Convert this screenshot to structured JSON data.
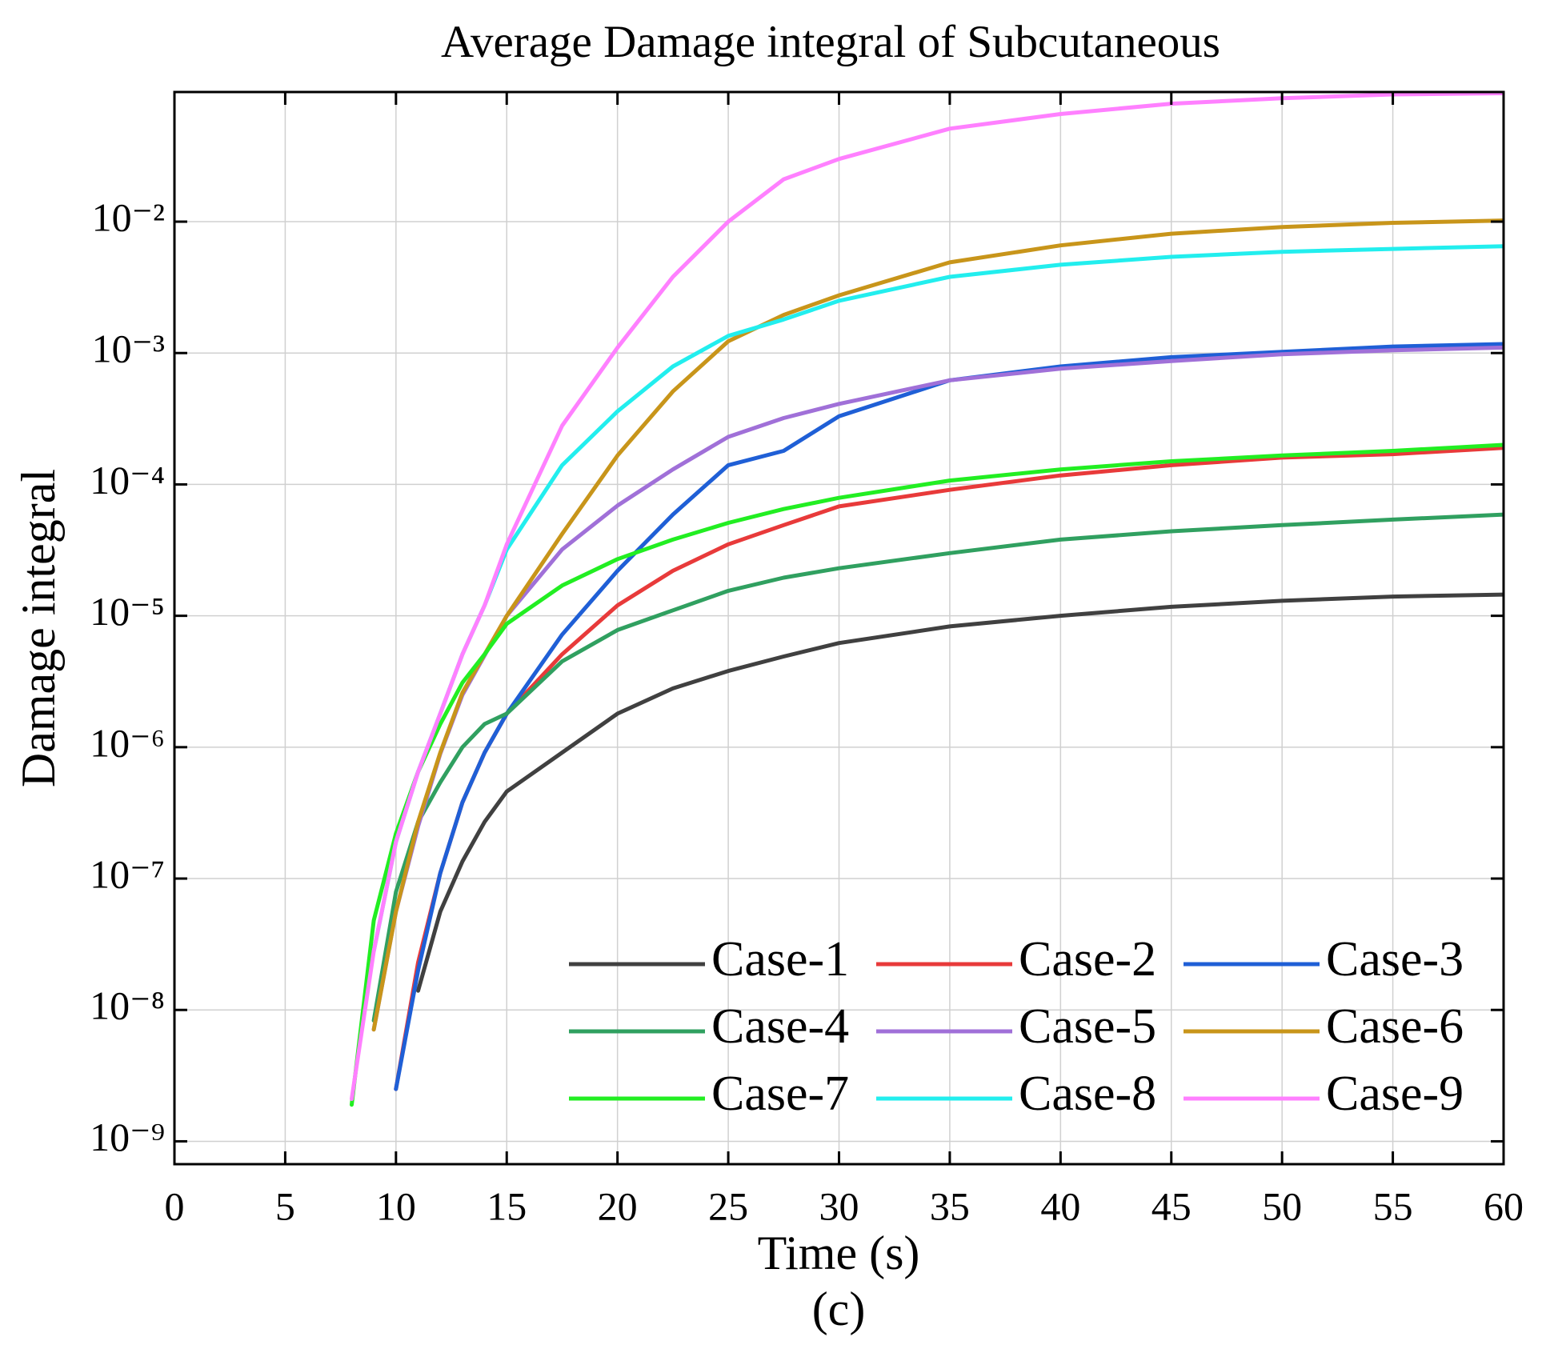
{
  "chart_data": {
    "type": "line",
    "title": "Average Damage integral of Subcutaneous",
    "xlabel": "Time (s)",
    "ylabel": "Damage integral",
    "caption": "(c)",
    "x": [
      8,
      9,
      10,
      11,
      12,
      13,
      14,
      15,
      17.5,
      20,
      22.5,
      25,
      27.5,
      30,
      35,
      40,
      45,
      50,
      55,
      60
    ],
    "series": [
      {
        "name": "Case-1",
        "color": "#404040",
        "values": [
          null,
          null,
          null,
          1.4e-08,
          5.6e-08,
          1.35e-07,
          2.7e-07,
          4.6e-07,
          9.1e-07,
          1.8e-06,
          2.8e-06,
          3.8e-06,
          4.9e-06,
          6.2e-06,
          8.3e-06,
          1e-05,
          1.17e-05,
          1.3e-05,
          1.4e-05,
          1.45e-05
        ]
      },
      {
        "name": "Case-2",
        "color": "#e83a3a",
        "values": [
          null,
          null,
          2.5e-09,
          2.3e-08,
          1.1e-07,
          3.8e-07,
          9.1e-07,
          1.8e-06,
          5.1e-06,
          1.2e-05,
          2.2e-05,
          3.5e-05,
          4.9e-05,
          6.8e-05,
          9.1e-05,
          0.000117,
          0.00014,
          0.00016,
          0.00017,
          0.00019
        ]
      },
      {
        "name": "Case-3",
        "color": "#1f5fd6",
        "values": [
          null,
          null,
          2.5e-09,
          2e-08,
          1.1e-07,
          3.8e-07,
          9.1e-07,
          1.8e-06,
          7.2e-06,
          2.2e-05,
          5.9e-05,
          0.00014,
          0.00018,
          0.00033,
          0.00062,
          0.00079,
          0.00093,
          0.00102,
          0.00112,
          0.00117
        ]
      },
      {
        "name": "Case-4",
        "color": "#30a060",
        "values": [
          null,
          8.3e-09,
          7.9e-08,
          2.7e-07,
          5.4e-07,
          1e-06,
          1.5e-06,
          1.8e-06,
          4.5e-06,
          7.8e-06,
          1.1e-05,
          1.55e-05,
          1.95e-05,
          2.3e-05,
          3e-05,
          3.8e-05,
          4.4e-05,
          4.9e-05,
          5.4e-05,
          5.9e-05
        ]
      },
      {
        "name": "Case-5",
        "color": "#a070d8",
        "values": [
          null,
          7.1e-09,
          5.6e-08,
          2.5e-07,
          8.9e-07,
          2.5e-06,
          5e-06,
          1e-05,
          3.2e-05,
          6.9e-05,
          0.00013,
          0.00023,
          0.00032,
          0.00041,
          0.00062,
          0.00076,
          0.00087,
          0.00098,
          0.00105,
          0.0011
        ]
      },
      {
        "name": "Case-6",
        "color": "#c8951a",
        "values": [
          null,
          7.1e-09,
          5.6e-08,
          2.7e-07,
          9.1e-07,
          2.6e-06,
          5.1e-06,
          1e-05,
          4.2e-05,
          0.000166,
          0.00051,
          0.00123,
          0.00195,
          0.00275,
          0.0049,
          0.0066,
          0.0081,
          0.0091,
          0.0098,
          0.0102
        ]
      },
      {
        "name": "Case-7",
        "color": "#22ee22",
        "values": [
          1.9e-09,
          4.8e-08,
          2.2e-07,
          6.5e-07,
          1.5e-06,
          3.1e-06,
          5.1e-06,
          8.7e-06,
          1.7e-05,
          2.7e-05,
          3.8e-05,
          5.1e-05,
          6.5e-05,
          7.9e-05,
          0.000107,
          0.00013,
          0.00015,
          0.000166,
          0.00018,
          0.0002
        ]
      },
      {
        "name": "Case-8",
        "color": "#22eeee",
        "values": [
          null,
          2.8e-08,
          1.9e-07,
          6.5e-07,
          1.8e-06,
          5.1e-06,
          1.2e-05,
          3.2e-05,
          0.00014,
          0.00036,
          0.00079,
          0.00135,
          0.0018,
          0.0025,
          0.0038,
          0.0047,
          0.0054,
          0.0059,
          0.0062,
          0.0065
        ]
      },
      {
        "name": "Case-9",
        "color": "#ff80ff",
        "values": [
          2.1e-09,
          2.8e-08,
          1.9e-07,
          6.5e-07,
          1.8e-06,
          5.1e-06,
          1.2e-05,
          3.5e-05,
          0.00028,
          0.0011,
          0.0038,
          0.01,
          0.021,
          0.03,
          0.051,
          0.066,
          0.079,
          0.087,
          0.093,
          0.095
        ]
      }
    ],
    "xlim": [
      0,
      60
    ],
    "xticks": [
      0,
      5,
      10,
      15,
      20,
      25,
      30,
      35,
      40,
      45,
      50,
      55,
      60
    ],
    "ylim": [
      6.7e-10,
      0.097
    ],
    "yscale": "log",
    "yticks": [
      {
        "value": 1e-09,
        "label": "10⁻⁹"
      },
      {
        "value": 1e-08,
        "label": "10⁻⁸"
      },
      {
        "value": 1e-07,
        "label": "10⁻⁷"
      },
      {
        "value": 1e-06,
        "label": "10⁻⁶"
      },
      {
        "value": 1e-05,
        "label": "10⁻⁵"
      },
      {
        "value": 0.0001,
        "label": "10⁻⁴"
      },
      {
        "value": 0.001,
        "label": "10⁻³"
      },
      {
        "value": 0.01,
        "label": "10⁻²"
      }
    ],
    "grid": true,
    "legend": "lower right",
    "legend_columns": 3
  }
}
